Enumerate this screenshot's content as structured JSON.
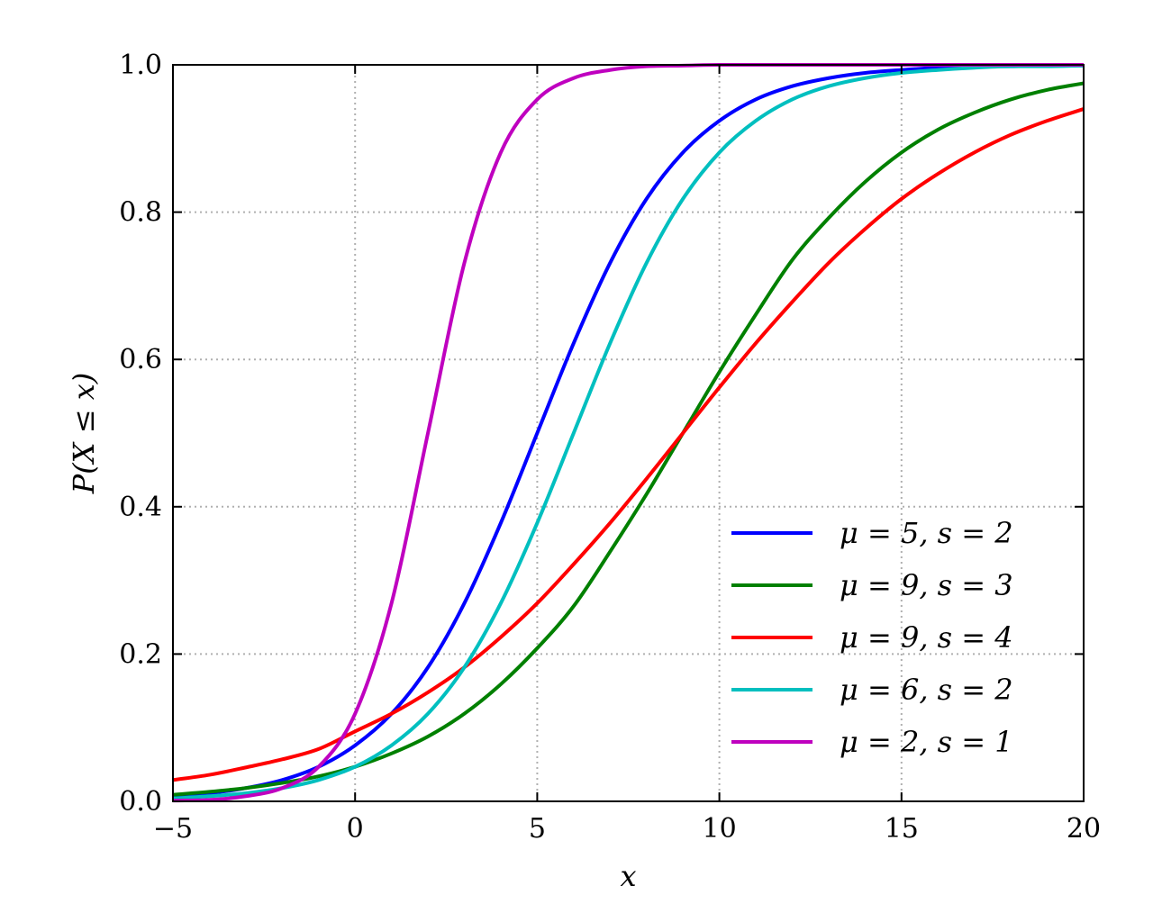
{
  "chart_data": {
    "type": "line",
    "title": "",
    "xlabel": "x",
    "ylabel": "P(X ≤ x)",
    "xlim": [
      -5,
      20
    ],
    "ylim": [
      0,
      1
    ],
    "x_ticks": [
      -5,
      0,
      5,
      10,
      15,
      20
    ],
    "x_tick_labels": [
      "−5",
      "0",
      "5",
      "10",
      "15",
      "20"
    ],
    "y_ticks": [
      0,
      0.2,
      0.4,
      0.6,
      0.8,
      1
    ],
    "y_tick_labels": [
      "0.0",
      "0.2",
      "0.4",
      "0.6",
      "0.8",
      "1.0"
    ],
    "grid": true,
    "legend_position": "lower-right",
    "x": [
      -5,
      -4,
      -3,
      -2,
      -1,
      0,
      1,
      2,
      3,
      4,
      5,
      6,
      7,
      8,
      9,
      10,
      11,
      12,
      13,
      14,
      15,
      16,
      17,
      18,
      19,
      20
    ],
    "series": [
      {
        "name": "μ = 5,  s = 2",
        "color": "#0000ff",
        "values": [
          0.007,
          0.011,
          0.018,
          0.029,
          0.047,
          0.076,
          0.119,
          0.182,
          0.269,
          0.378,
          0.5,
          0.622,
          0.731,
          0.818,
          0.881,
          0.924,
          0.953,
          0.971,
          0.982,
          0.989,
          0.993,
          0.996,
          0.998,
          0.998,
          0.999,
          0.999
        ]
      },
      {
        "name": "μ = 9,  s = 3",
        "color": "#008000",
        "values": [
          0.009,
          0.013,
          0.018,
          0.025,
          0.034,
          0.047,
          0.065,
          0.088,
          0.119,
          0.159,
          0.208,
          0.265,
          0.339,
          0.417,
          0.5,
          0.583,
          0.661,
          0.735,
          0.792,
          0.841,
          0.881,
          0.912,
          0.935,
          0.953,
          0.966,
          0.975
        ]
      },
      {
        "name": "μ = 9,  s = 4",
        "color": "#ff0000",
        "values": [
          0.029,
          0.036,
          0.046,
          0.057,
          0.071,
          0.095,
          0.119,
          0.148,
          0.182,
          0.223,
          0.269,
          0.322,
          0.378,
          0.438,
          0.5,
          0.562,
          0.622,
          0.678,
          0.731,
          0.777,
          0.818,
          0.852,
          0.881,
          0.905,
          0.924,
          0.94
        ]
      },
      {
        "name": "μ = 6,  s = 2",
        "color": "#00bfbf",
        "values": [
          0.004,
          0.007,
          0.011,
          0.018,
          0.029,
          0.047,
          0.076,
          0.119,
          0.182,
          0.269,
          0.378,
          0.5,
          0.622,
          0.731,
          0.818,
          0.881,
          0.924,
          0.953,
          0.971,
          0.982,
          0.989,
          0.993,
          0.996,
          0.998,
          0.998,
          0.999
        ]
      },
      {
        "name": "μ = 2,  s = 1",
        "color": "#bf00bf",
        "values": [
          0.001,
          0.002,
          0.007,
          0.018,
          0.047,
          0.119,
          0.269,
          0.5,
          0.731,
          0.881,
          0.953,
          0.982,
          0.993,
          0.998,
          0.999,
          1.0,
          1.0,
          1.0,
          1.0,
          1.0,
          1.0,
          1.0,
          1.0,
          1.0,
          1.0,
          1.0
        ]
      }
    ]
  }
}
